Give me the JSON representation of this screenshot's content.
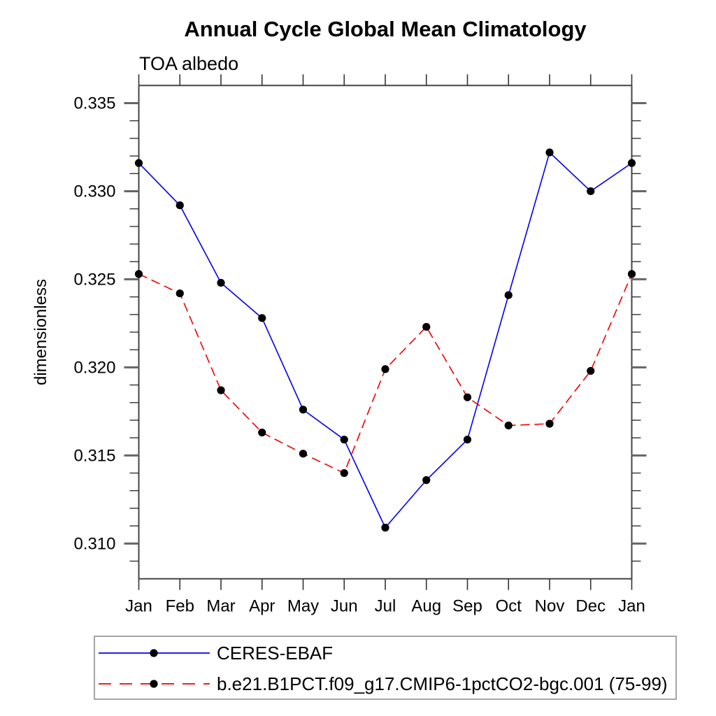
{
  "title": "Annual Cycle Global Mean Climatology",
  "subtitle": "TOA albedo",
  "chart_data": {
    "type": "line",
    "x_categories": [
      "Jan",
      "Feb",
      "Mar",
      "Apr",
      "May",
      "Jun",
      "Jul",
      "Aug",
      "Sep",
      "Oct",
      "Nov",
      "Dec",
      "Jan"
    ],
    "xlabel": "",
    "ylabel": "dimensionless",
    "ylim": [
      0.308,
      0.336
    ],
    "yticks_major": [
      0.31,
      0.315,
      0.32,
      0.325,
      0.33,
      0.335
    ],
    "ytick_labels": [
      "0.310",
      "0.315",
      "0.320",
      "0.325",
      "0.330",
      "0.335"
    ],
    "yminor_step": 0.001,
    "grid": false,
    "legend_position": "bottom-left-box",
    "series": [
      {
        "name": "CERES-EBAF",
        "color": "#0000ee",
        "line_style": "solid",
        "marker": "filled-circle",
        "marker_color": "#000000",
        "values": [
          0.3316,
          0.3292,
          0.3248,
          0.3228,
          0.3176,
          0.3159,
          0.3109,
          0.3136,
          0.3159,
          0.3241,
          0.3322,
          0.33,
          0.3316
        ]
      },
      {
        "name": "b.e21.B1PCT.f09_g17.CMIP6-1pctCO2-bgc.001 (75-99)",
        "color": "#ee0000",
        "line_style": "dashed",
        "marker": "filled-circle",
        "marker_color": "#000000",
        "values": [
          0.3253,
          0.3242,
          0.3187,
          0.3163,
          0.3151,
          0.314,
          0.3199,
          0.3223,
          0.3183,
          0.3167,
          0.3168,
          0.3198,
          0.3253
        ]
      }
    ],
    "axis_color": "#444444",
    "major_tick_color": "#666666",
    "minor_tick_color": "#333333"
  }
}
